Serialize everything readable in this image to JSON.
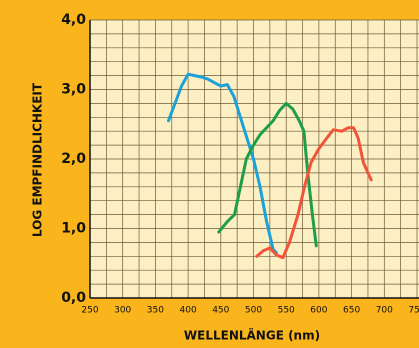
{
  "chart_data": {
    "type": "line",
    "x_label": "WELLENLÄNGE (nm)",
    "y_label": "LOG EMPFINDLICHKEIT",
    "xlim": [
      250,
      750
    ],
    "xticks": [
      250,
      300,
      350,
      400,
      450,
      500,
      550,
      600,
      650,
      700,
      750
    ],
    "ylim": [
      0,
      4
    ],
    "yticks": [
      {
        "value": 0,
        "label": "0,0"
      },
      {
        "value": 1,
        "label": "1,0"
      },
      {
        "value": 2,
        "label": "2,0"
      },
      {
        "value": 3,
        "label": "3,0"
      },
      {
        "value": 4,
        "label": "4,0"
      }
    ],
    "grid": true,
    "series": [
      {
        "color": "#1ba1d8",
        "x": [
          370,
          380,
          390,
          400,
          410,
          420,
          430,
          440,
          450,
          460,
          470,
          480,
          490,
          500,
          510,
          520,
          530,
          535
        ],
        "values": [
          2.55,
          2.8,
          3.05,
          3.22,
          3.2,
          3.18,
          3.15,
          3.1,
          3.05,
          3.07,
          2.9,
          2.6,
          2.3,
          2.0,
          1.6,
          1.1,
          0.7,
          0.65
        ]
      },
      {
        "color": "#1f9e4a",
        "x": [
          447,
          460,
          471,
          480,
          489,
          500,
          510,
          520,
          530,
          540,
          550,
          560,
          570,
          577,
          583,
          590,
          596
        ],
        "values": [
          0.95,
          1.1,
          1.2,
          1.6,
          2.0,
          2.2,
          2.35,
          2.45,
          2.55,
          2.7,
          2.8,
          2.72,
          2.55,
          2.4,
          1.8,
          1.2,
          0.75
        ]
      },
      {
        "color": "#f0553a",
        "x": [
          505,
          515,
          525,
          535,
          545,
          555,
          568,
          578,
          588,
          600,
          612,
          622,
          635,
          645,
          653,
          660,
          668,
          675,
          680
        ],
        "values": [
          0.6,
          0.68,
          0.72,
          0.62,
          0.58,
          0.8,
          1.2,
          1.6,
          1.95,
          2.15,
          2.3,
          2.42,
          2.4,
          2.45,
          2.45,
          2.3,
          1.95,
          1.8,
          1.7
        ]
      }
    ]
  }
}
